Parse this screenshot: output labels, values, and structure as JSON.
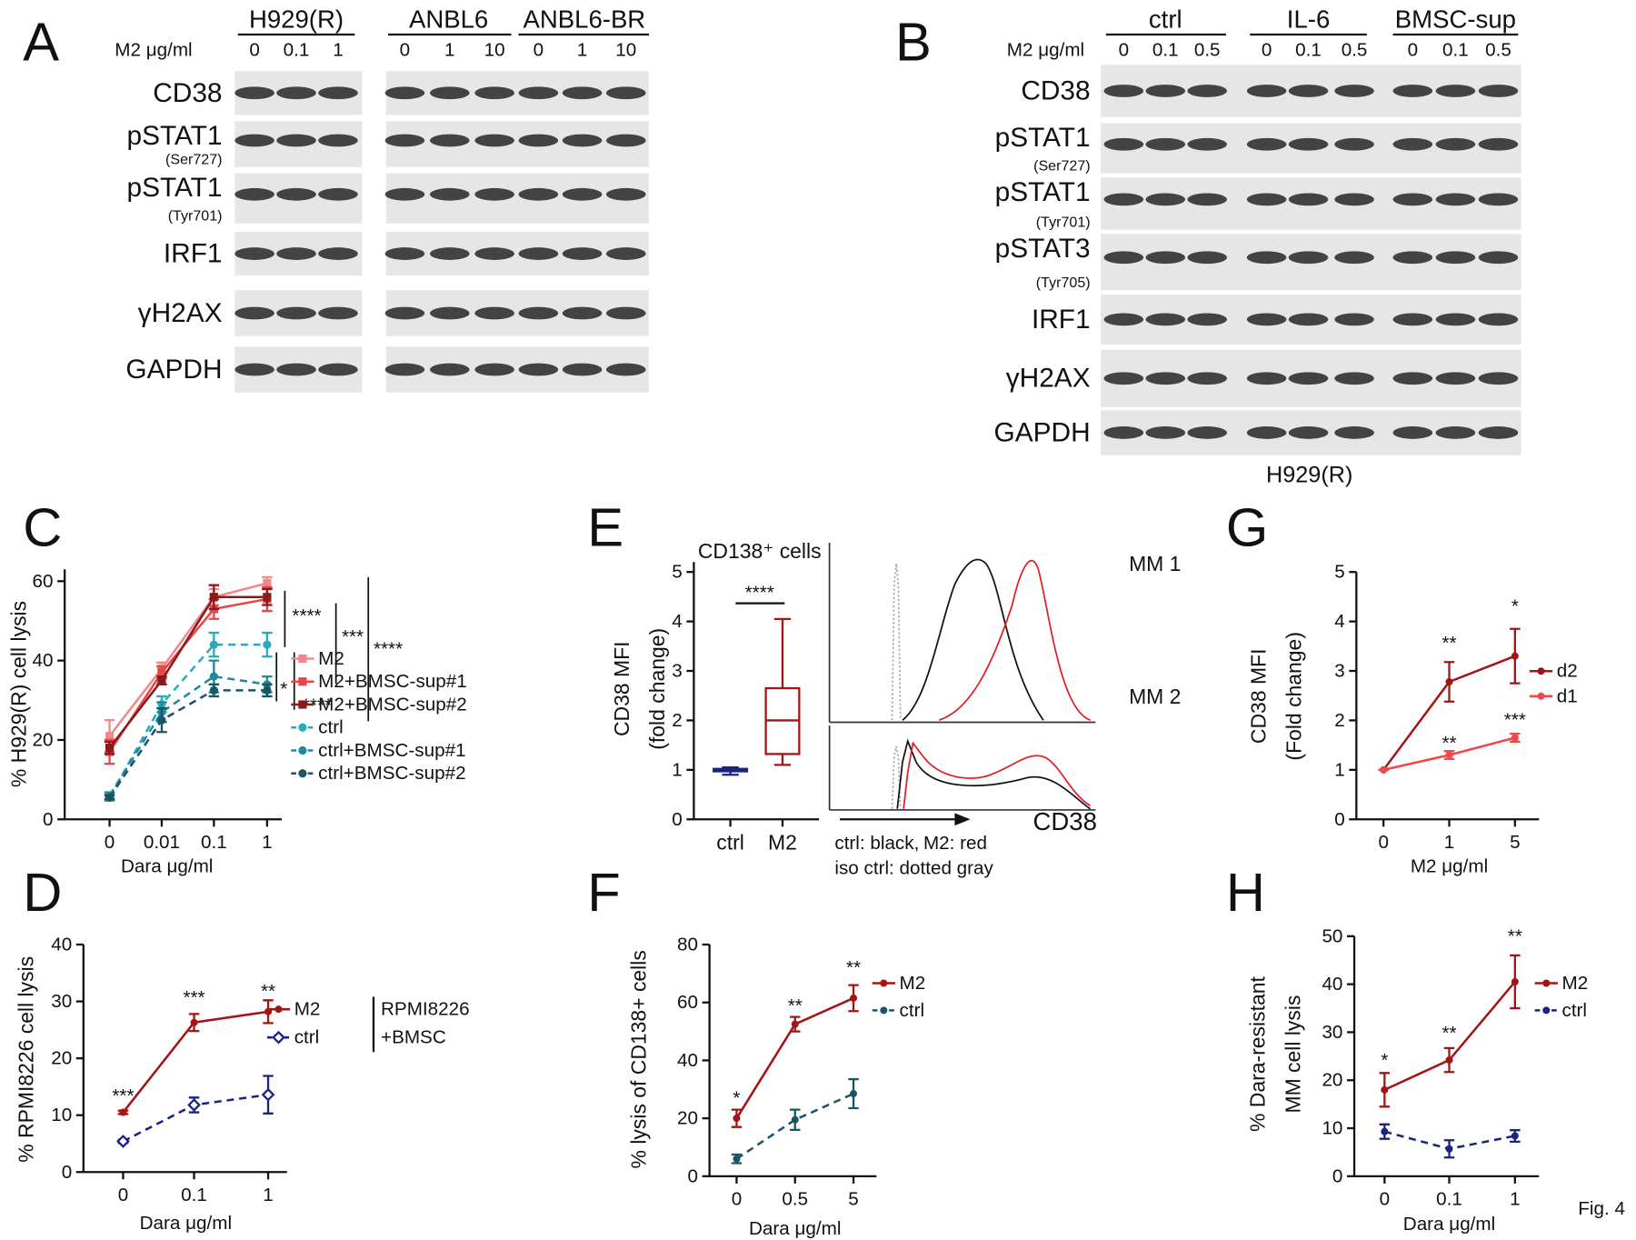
{
  "panel_labels": [
    "A",
    "B",
    "C",
    "D",
    "E",
    "F",
    "G",
    "H"
  ],
  "figure_label": "Fig. 4",
  "blots": [
    {
      "groups": [
        "H929(R)",
        "ANBL6",
        "ANBL6-BR"
      ],
      "dose_label": "M2 μg/ml",
      "doses": [
        "0",
        "0.1",
        "1",
        "0",
        "1",
        "10",
        "0",
        "1",
        "10"
      ],
      "rows": [
        {
          "label": "CD38"
        },
        {
          "label": "pSTAT1",
          "sublabel": "(Ser727)"
        },
        {
          "label": "pSTAT1",
          "sublabel": "(Tyr701)"
        },
        {
          "label": "IRF1"
        },
        {
          "label": "γH2AX"
        },
        {
          "label": "GAPDH"
        }
      ]
    },
    {
      "groups": [
        "ctrl",
        "IL-6",
        "BMSC-sup"
      ],
      "dose_label": "M2 μg/ml",
      "doses": [
        "0",
        "0.1",
        "0.5",
        "0",
        "0.1",
        "0.5",
        "0",
        "0.1",
        "0.5"
      ],
      "rows": [
        {
          "label": "CD38"
        },
        {
          "label": "pSTAT1",
          "sublabel": "(Ser727)"
        },
        {
          "label": "pSTAT1",
          "sublabel": "(Tyr701)"
        },
        {
          "label": "pSTAT3",
          "sublabel": "(Tyr705)"
        },
        {
          "label": "IRF1"
        },
        {
          "label": "γH2AX"
        },
        {
          "label": "GAPDH"
        }
      ],
      "caption": "H929(R)"
    }
  ],
  "chart_data": [
    {
      "type": "line",
      "ylabel": [
        "% H929(R) cell lysis"
      ],
      "xlabel": "Dara μg/ml",
      "categories": [
        "0",
        "0.01",
        "0.1",
        "1"
      ],
      "ylim": [
        0,
        63
      ],
      "yticks": [
        0,
        20,
        40,
        60
      ],
      "series": [
        {
          "name": "M2",
          "color": "#f08a8a",
          "marker": "square",
          "dashed": false,
          "values": [
            21,
            38,
            56,
            59.5
          ],
          "errors": [
            4,
            1.5,
            2,
            1.5
          ]
        },
        {
          "name": "M2+BMSC-sup#1",
          "color": "#e84545",
          "marker": "square",
          "dashed": false,
          "values": [
            17,
            37,
            53,
            55.5
          ],
          "errors": [
            3,
            1.5,
            2.5,
            3
          ]
        },
        {
          "name": "M2+BMSC-sup#2",
          "color": "#8b1a1a",
          "marker": "square",
          "dashed": false,
          "values": [
            18,
            35,
            56,
            56
          ],
          "errors": [
            1.5,
            1,
            3,
            2
          ]
        },
        {
          "name": "ctrl",
          "color": "#2aaabb",
          "marker": "circle",
          "dashed": true,
          "values": [
            5.5,
            29,
            44,
            44
          ],
          "errors": [
            0.8,
            2,
            3,
            3
          ]
        },
        {
          "name": "ctrl+BMSC-sup#1",
          "color": "#1f8a9a",
          "marker": "circle",
          "dashed": true,
          "values": [
            6,
            27,
            36,
            34
          ],
          "errors": [
            0.8,
            2.5,
            4,
            2
          ]
        },
        {
          "name": "ctrl+BMSC-sup#2",
          "color": "#1a5566",
          "marker": "circle",
          "dashed": true,
          "values": [
            5.5,
            25,
            32.5,
            32.5
          ],
          "errors": [
            0.5,
            3,
            1.5,
            1.5
          ]
        }
      ],
      "annotations": [
        "****",
        "*",
        "****",
        "***",
        "****"
      ]
    },
    {
      "type": "line",
      "ylabel": [
        "% RPMI8226 cell lysis"
      ],
      "xlabel": "Dara μg/ml",
      "categories": [
        "0",
        "0.1",
        "1"
      ],
      "ylim": [
        0,
        40
      ],
      "yticks": [
        0,
        10,
        20,
        30,
        40
      ],
      "series": [
        {
          "name": "M2",
          "color": "#a31515",
          "marker": "dot",
          "dashed": false,
          "values": [
            10.5,
            26.3,
            28.2
          ],
          "errors": [
            0.3,
            1.5,
            2
          ]
        },
        {
          "name": "ctrl",
          "color": "#1a237e",
          "marker": "diamond-open",
          "dashed": true,
          "values": [
            5.4,
            11.8,
            13.6
          ],
          "errors": [
            0.3,
            1.3,
            3.3
          ]
        }
      ],
      "legend_note": [
        "RPMI8226",
        "+BMSC"
      ],
      "annotations": [
        "***",
        "***",
        "**"
      ]
    },
    {
      "type": "box",
      "title": "CD138⁺ cells",
      "ylabel": [
        "CD38 MFI",
        "(fold change)"
      ],
      "categories": [
        "ctrl",
        "M2"
      ],
      "colors": [
        "#1a237e",
        "#a31515"
      ],
      "ylim": [
        0,
        5.2
      ],
      "yticks": [
        0,
        1,
        2,
        3,
        4,
        5
      ],
      "boxes": [
        {
          "min": 0.9,
          "q1": 0.97,
          "median": 1.0,
          "q3": 1.02,
          "max": 1.05
        },
        {
          "min": 1.1,
          "q1": 1.32,
          "median": 2.0,
          "q3": 2.65,
          "max": 4.05
        }
      ],
      "annotations": [
        "****"
      ],
      "histogram_labels": [
        "MM 1",
        "MM 2"
      ],
      "histogram_axis_label": "CD38",
      "histogram_legend": [
        {
          "text": "ctrl: black, ",
          "color": "#111111"
        },
        {
          "text": "M2: red",
          "color": "#e02020"
        },
        {
          "text": "iso ctrl: dotted gray",
          "color": "#b0b0b0"
        }
      ]
    },
    {
      "type": "line",
      "ylabel": [
        "% lysis of CD138+ cells"
      ],
      "xlabel": "Dara μg/ml",
      "categories": [
        "0",
        "0.5",
        "5"
      ],
      "ylim": [
        0,
        80
      ],
      "yticks": [
        0,
        20,
        40,
        60,
        80
      ],
      "series": [
        {
          "name": "M2",
          "color": "#a31515",
          "marker": "dot",
          "dashed": false,
          "values": [
            20,
            52.5,
            61.5
          ],
          "errors": [
            3,
            2.5,
            4.5
          ]
        },
        {
          "name": "ctrl",
          "color": "#1a5566",
          "marker": "dot",
          "dashed": true,
          "values": [
            6,
            19.5,
            28.5
          ],
          "errors": [
            1.5,
            3.5,
            5
          ]
        }
      ],
      "annotations": [
        "*",
        "**",
        "**"
      ]
    },
    {
      "type": "line",
      "ylabel": [
        "CD38 MFI",
        "(Fold change)"
      ],
      "xlabel": "M2 μg/ml",
      "categories": [
        "0",
        "1",
        "5"
      ],
      "ylim": [
        0,
        5
      ],
      "yticks": [
        0,
        1,
        2,
        3,
        4,
        5
      ],
      "series": [
        {
          "name": "d2",
          "color": "#a31515",
          "marker": "dot",
          "dashed": false,
          "values": [
            1,
            2.78,
            3.3
          ],
          "errors": [
            0,
            0.4,
            0.55
          ]
        },
        {
          "name": "d1",
          "color": "#f04848",
          "marker": "dot",
          "dashed": false,
          "values": [
            1,
            1.3,
            1.65
          ],
          "errors": [
            0,
            0.08,
            0.08
          ]
        }
      ],
      "annotations": [
        "**",
        "*",
        "**",
        "***"
      ]
    },
    {
      "type": "line",
      "ylabel": [
        "%  Dara-resistant",
        "MM cell lysis"
      ],
      "xlabel": "Dara μg/ml",
      "categories": [
        "0",
        "0.1",
        "1"
      ],
      "ylim": [
        0,
        50
      ],
      "yticks": [
        0,
        10,
        20,
        30,
        40,
        50
      ],
      "series": [
        {
          "name": "M2",
          "color": "#a31515",
          "marker": "dot",
          "dashed": false,
          "values": [
            18,
            24.2,
            40.5
          ],
          "errors": [
            3.5,
            2.5,
            5.5
          ]
        },
        {
          "name": "ctrl",
          "color": "#1a237e",
          "marker": "dot",
          "dashed": true,
          "values": [
            9.3,
            5.7,
            8.4
          ],
          "errors": [
            1.5,
            1.8,
            1.2
          ]
        }
      ],
      "annotations": [
        "*",
        "**",
        "**"
      ]
    }
  ]
}
